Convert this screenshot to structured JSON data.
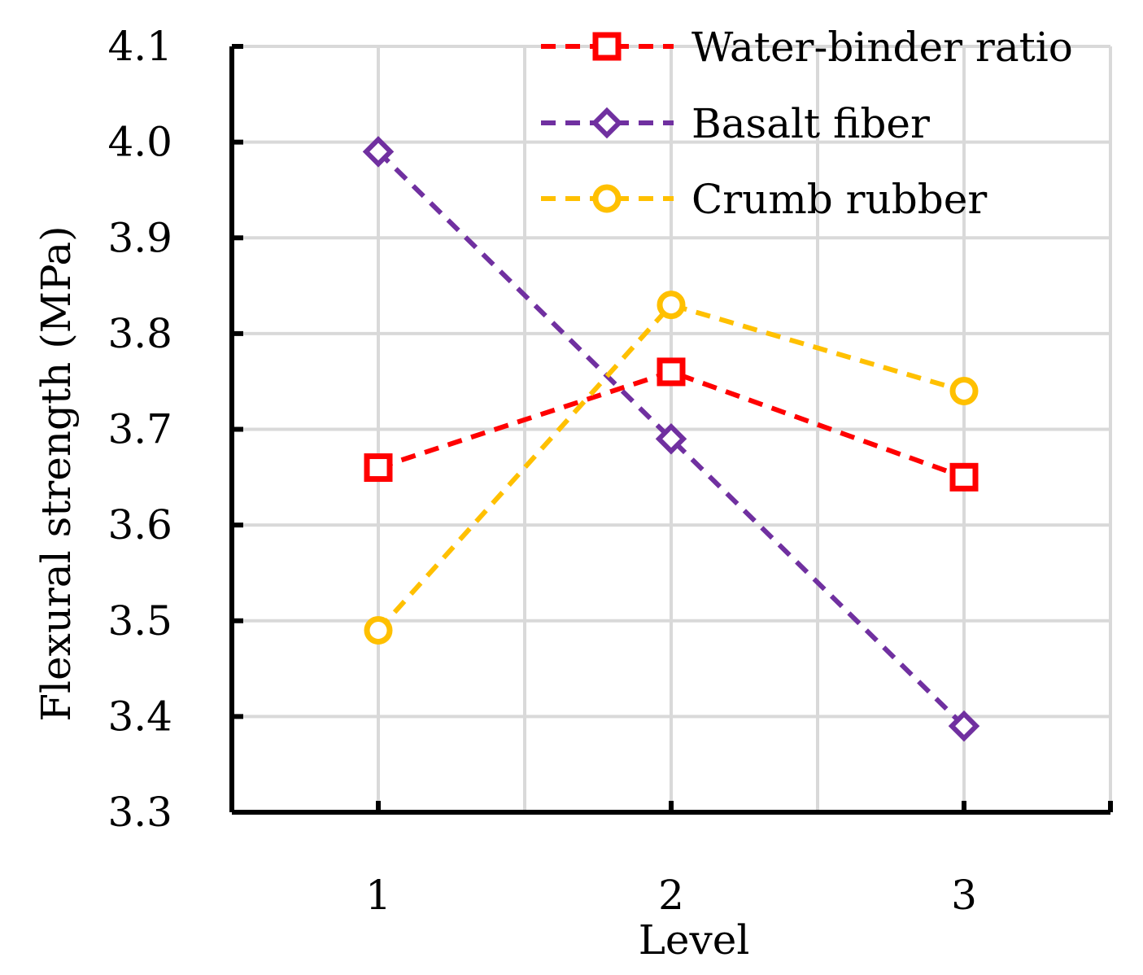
{
  "chart_data": {
    "type": "line",
    "title": "",
    "xlabel": "Level",
    "ylabel": "Flexural strength (MPa)",
    "categories": [
      "1",
      "2",
      "3"
    ],
    "x": [
      1,
      2,
      3
    ],
    "xlim": [
      0.5,
      3.5
    ],
    "ylim": [
      3.3,
      4.1
    ],
    "yticks": [
      "3.3",
      "3.4",
      "3.5",
      "3.6",
      "3.7",
      "3.8",
      "3.9",
      "4.0",
      "4.1"
    ],
    "grid": true,
    "legend_position": "top-right",
    "series": [
      {
        "name": "Water-binder ratio",
        "values": [
          3.66,
          3.76,
          3.65
        ],
        "color": "#ff0000",
        "marker": "square"
      },
      {
        "name": "Basalt fiber",
        "values": [
          3.99,
          3.69,
          3.39
        ],
        "color": "#7030a0",
        "marker": "diamond"
      },
      {
        "name": "Crumb rubber",
        "values": [
          3.49,
          3.83,
          3.74
        ],
        "color": "#ffc000",
        "marker": "circle"
      }
    ]
  }
}
